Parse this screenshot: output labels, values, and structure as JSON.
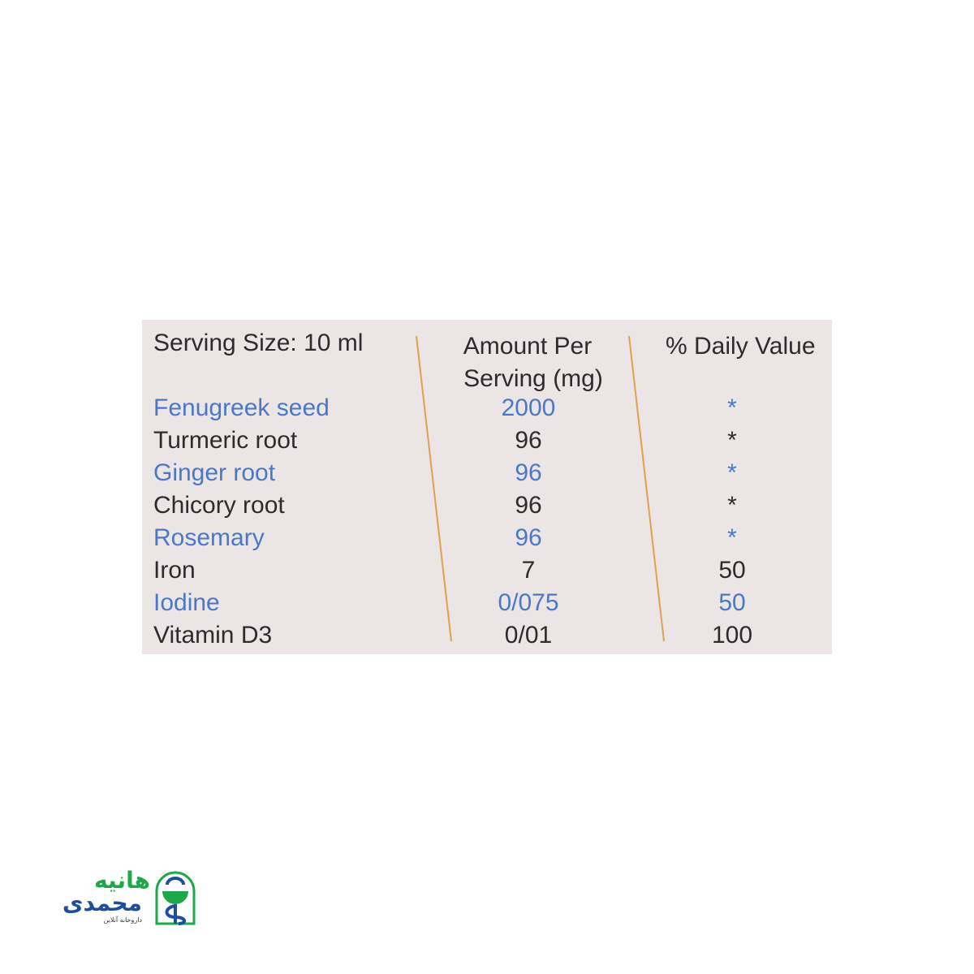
{
  "header": {
    "serving_size": "Serving Size: 10 ml",
    "amount_line1": "Amount Per",
    "amount_line2": "Serving (mg)",
    "daily_value": "% Daily Value"
  },
  "rows": [
    {
      "name": "Fenugreek seed",
      "amount": "2000",
      "dv": "*",
      "highlight": true
    },
    {
      "name": "Turmeric root",
      "amount": "96",
      "dv": "*",
      "highlight": false
    },
    {
      "name": "Ginger root",
      "amount": "96",
      "dv": "*",
      "highlight": true
    },
    {
      "name": "Chicory root",
      "amount": "96",
      "dv": "*",
      "highlight": false
    },
    {
      "name": "Rosemary",
      "amount": "96",
      "dv": "*",
      "highlight": true
    },
    {
      "name": "Iron",
      "amount": "7",
      "dv": "50",
      "highlight": false
    },
    {
      "name": "Iodine",
      "amount": "0/075",
      "dv": "50",
      "highlight": true
    },
    {
      "name": "Vitamin D3",
      "amount": "0/01",
      "dv": "100",
      "highlight": false
    }
  ],
  "colors": {
    "highlight": "#4a78c8",
    "text": "#2f2a2c",
    "divider": "#e0a050",
    "label_bg": "#ece5e5",
    "logo_green": "#1fa84a",
    "logo_blue": "#1e4f9c"
  },
  "logo": {
    "name_line1": "هانیه",
    "name_line2": "محمدی",
    "tagline": "داروخانه آنلاین"
  }
}
